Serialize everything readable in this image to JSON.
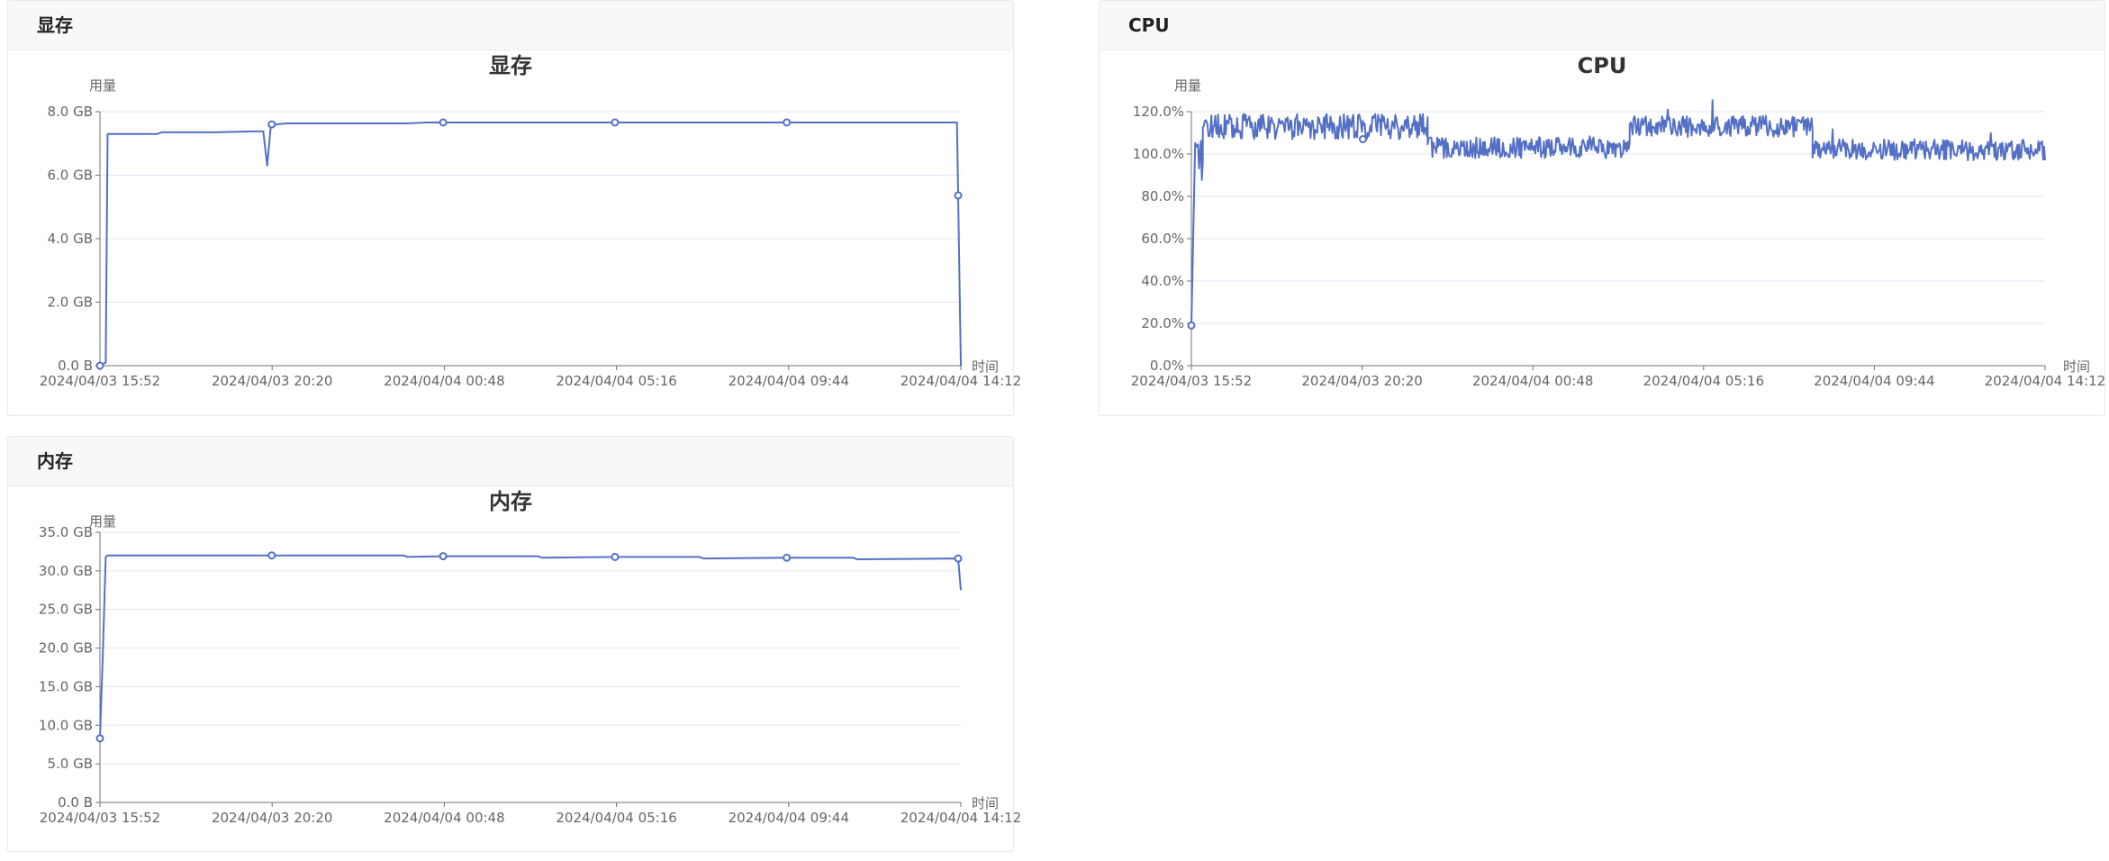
{
  "series_color": "#5470c6",
  "panels": {
    "vram": {
      "header": "显存",
      "title": "显存",
      "ylabel": "用量",
      "xlabel": "时间"
    },
    "cpu": {
      "header": "CPU",
      "title": "CPU",
      "ylabel": "用量",
      "xlabel": "时间"
    },
    "mem": {
      "header": "内存",
      "title": "内存",
      "ylabel": "用量",
      "xlabel": "时间"
    }
  },
  "chart_data": [
    {
      "id": "vram",
      "type": "line",
      "title": "显存",
      "ylabel": "用量",
      "xlabel": "时间",
      "unit": "GB",
      "ylim": [
        0,
        8
      ],
      "yticks": [
        "0.0 B",
        "2.0 GB",
        "4.0 GB",
        "6.0 GB",
        "8.0 GB"
      ],
      "xticks": [
        "2024/04/03 15:52",
        "2024/04/03 20:20",
        "2024/04/04 00:48",
        "2024/04/04 05:16",
        "2024/04/04 09:44",
        "2024/04/04 14:12"
      ],
      "xlim_hours": [
        0,
        22.4
      ],
      "grid": true,
      "x_hours": [
        0,
        0.15,
        0.2,
        1.0,
        1.5,
        1.6,
        3.0,
        4.0,
        4.25,
        4.35,
        4.45,
        4.6,
        4.75,
        4.9,
        6,
        8,
        8.5,
        12,
        16,
        20,
        22.3,
        22.4
      ],
      "values": [
        0,
        0.1,
        7.3,
        7.3,
        7.3,
        7.35,
        7.35,
        7.38,
        7.38,
        6.3,
        7.6,
        7.6,
        7.62,
        7.63,
        7.63,
        7.63,
        7.66,
        7.66,
        7.66,
        7.66,
        7.66,
        0
      ],
      "markers_hours": [
        0,
        4.47,
        8.93,
        13.4,
        17.87,
        22.33
      ]
    },
    {
      "id": "cpu",
      "type": "line",
      "title": "CPU",
      "ylabel": "用量",
      "xlabel": "时间",
      "unit": "%",
      "ylim": [
        0,
        120
      ],
      "yticks": [
        "0.0%",
        "20.0%",
        "40.0%",
        "60.0%",
        "80.0%",
        "100.0%",
        "120.0%"
      ],
      "xticks": [
        "2024/04/03 15:52",
        "2024/04/03 20:20",
        "2024/04/04 00:48",
        "2024/04/04 05:16",
        "2024/04/04 09:44",
        "2024/04/04 14:12"
      ],
      "xlim_hours": [
        0,
        22.4
      ],
      "grid": true,
      "segments": [
        {
          "from_hours": 0.0,
          "to_hours": 0.1,
          "base": 19,
          "amp": 0
        },
        {
          "from_hours": 0.1,
          "to_hours": 0.3,
          "base": 95,
          "amp": 12
        },
        {
          "from_hours": 0.3,
          "to_hours": 6.2,
          "base": 113,
          "amp": 6
        },
        {
          "from_hours": 6.2,
          "to_hours": 11.5,
          "base": 103,
          "amp": 5
        },
        {
          "from_hours": 11.5,
          "to_hours": 16.3,
          "base": 113,
          "amp": 5
        },
        {
          "from_hours": 16.3,
          "to_hours": 22.4,
          "base": 102,
          "amp": 5
        }
      ],
      "markers": [
        {
          "hours": 0,
          "value": 19
        },
        {
          "hours": 4.5,
          "value": 107
        }
      ]
    },
    {
      "id": "mem",
      "type": "line",
      "title": "内存",
      "ylabel": "用量",
      "xlabel": "时间",
      "unit": "GB",
      "ylim": [
        0,
        35
      ],
      "yticks": [
        "0.0 B",
        "5.0 GB",
        "10.0 GB",
        "15.0 GB",
        "20.0 GB",
        "25.0 GB",
        "30.0 GB",
        "35.0 GB"
      ],
      "xticks": [
        "2024/04/03 15:52",
        "2024/04/03 20:20",
        "2024/04/04 00:48",
        "2024/04/04 05:16",
        "2024/04/04 09:44",
        "2024/04/04 14:12"
      ],
      "xlim_hours": [
        0,
        22.4
      ],
      "grid": true,
      "x_hours": [
        0,
        0.08,
        0.15,
        0.2,
        2,
        4.47,
        6,
        7.9,
        8,
        8.93,
        10,
        11.4,
        11.5,
        13.4,
        15,
        15.6,
        15.7,
        17.87,
        19,
        19.6,
        19.7,
        22.33,
        22.4
      ],
      "values": [
        8.3,
        20,
        31.8,
        32.0,
        32.0,
        32.0,
        32.0,
        32.0,
        31.8,
        31.9,
        31.9,
        31.9,
        31.7,
        31.8,
        31.8,
        31.8,
        31.6,
        31.7,
        31.7,
        31.7,
        31.5,
        31.6,
        27.5
      ],
      "markers_hours": [
        0,
        4.47,
        8.93,
        13.4,
        17.87,
        22.33
      ]
    }
  ]
}
